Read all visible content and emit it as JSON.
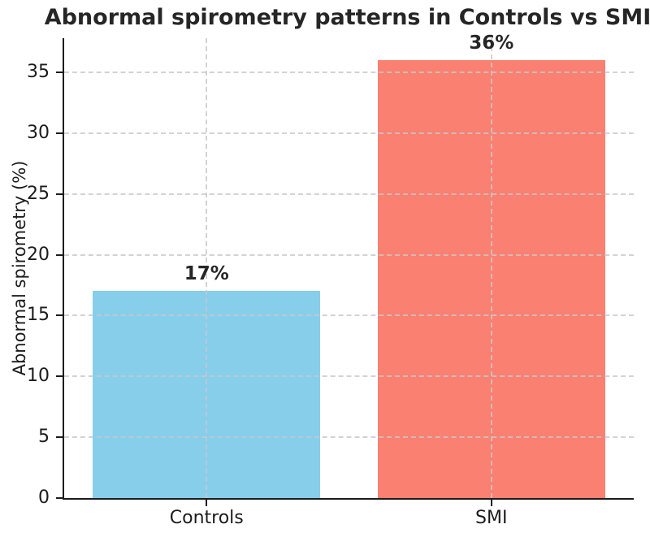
{
  "chart_data": {
    "type": "bar",
    "title": "Abnormal spirometry patterns in Controls vs SMI",
    "categories": [
      "Controls",
      "SMI"
    ],
    "values": [
      17,
      36
    ],
    "value_labels": [
      "17%",
      "36%"
    ],
    "bar_colors": [
      "#87CEEB",
      "#FA8072"
    ],
    "xlabel": "",
    "ylabel": "Abnormal spirometry (%)",
    "ylim": [
      0,
      37.8
    ],
    "yticks": [
      0,
      5,
      10,
      15,
      20,
      25,
      30,
      35
    ],
    "grid": true,
    "grid_style": "dashed",
    "legend": "none",
    "background_color": "#ffffff",
    "text_color": "#262626"
  }
}
